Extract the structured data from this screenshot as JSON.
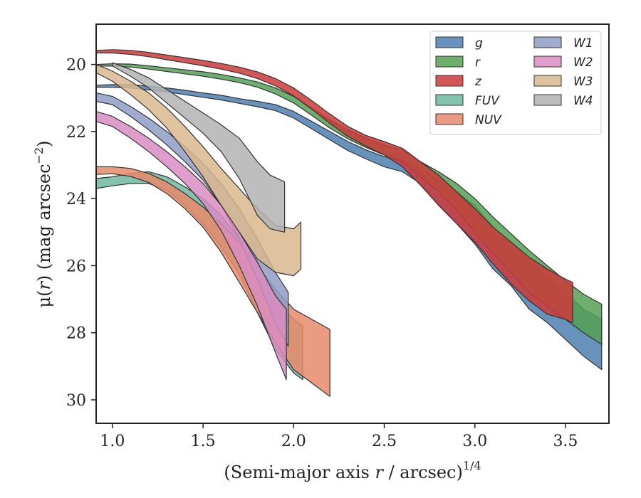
{
  "chart_data": {
    "type": "area",
    "xlabel_main": "(Semi-major axis ",
    "xlabel_var": "r",
    "xlabel_post": " / arcsec)",
    "xlabel_sup": "1/4",
    "ylabel_main": "μ(",
    "ylabel_var": "r",
    "ylabel_post": ") (mag arcsec",
    "ylabel_sup": "−2",
    "ylabel_close": ")",
    "xlim": [
      0.91,
      3.74
    ],
    "ylim": [
      30.7,
      18.8
    ],
    "y_inverted": true,
    "xticks": [
      1.0,
      1.5,
      2.0,
      2.5,
      3.0,
      3.5
    ],
    "xtick_labels": [
      "1.0",
      "1.5",
      "2.0",
      "2.5",
      "3.0",
      "3.5"
    ],
    "yticks": [
      20,
      22,
      24,
      26,
      28,
      30
    ],
    "ytick_labels": [
      "20",
      "22",
      "24",
      "26",
      "28",
      "30"
    ],
    "legend_position": "top-right",
    "legend_columns": 2,
    "series": [
      {
        "name": "g",
        "color": "#4c7fb0",
        "band": [
          [
            0.91,
            20.62,
            20.68
          ],
          [
            1.0,
            20.6,
            20.68
          ],
          [
            1.1,
            20.6,
            20.7
          ],
          [
            1.2,
            20.65,
            20.76
          ],
          [
            1.3,
            20.7,
            20.82
          ],
          [
            1.4,
            20.77,
            20.9
          ],
          [
            1.5,
            20.85,
            20.98
          ],
          [
            1.6,
            20.92,
            21.06
          ],
          [
            1.7,
            21.02,
            21.16
          ],
          [
            1.8,
            21.1,
            21.26
          ],
          [
            1.9,
            21.2,
            21.38
          ],
          [
            2.0,
            21.4,
            21.6
          ],
          [
            2.1,
            21.7,
            21.92
          ],
          [
            2.2,
            22.0,
            22.25
          ],
          [
            2.3,
            22.3,
            22.57
          ],
          [
            2.4,
            22.55,
            22.82
          ],
          [
            2.5,
            22.75,
            23.05
          ],
          [
            2.6,
            22.85,
            23.2
          ],
          [
            2.7,
            23.1,
            23.55
          ],
          [
            2.8,
            23.45,
            24.2
          ],
          [
            2.9,
            23.8,
            24.75
          ],
          [
            3.0,
            24.2,
            25.35
          ],
          [
            3.1,
            24.85,
            26.1
          ],
          [
            3.2,
            25.3,
            26.6
          ],
          [
            3.3,
            25.9,
            27.3
          ],
          [
            3.4,
            26.35,
            27.7
          ],
          [
            3.5,
            26.8,
            28.2
          ],
          [
            3.6,
            27.3,
            28.7
          ],
          [
            3.7,
            27.6,
            29.1
          ]
        ]
      },
      {
        "name": "r",
        "color": "#55a055",
        "band": [
          [
            0.91,
            20.0,
            20.05
          ],
          [
            1.0,
            19.98,
            20.05
          ],
          [
            1.1,
            19.99,
            20.08
          ],
          [
            1.2,
            20.04,
            20.14
          ],
          [
            1.3,
            20.1,
            20.21
          ],
          [
            1.4,
            20.16,
            20.28
          ],
          [
            1.5,
            20.22,
            20.35
          ],
          [
            1.6,
            20.3,
            20.44
          ],
          [
            1.7,
            20.4,
            20.54
          ],
          [
            1.8,
            20.52,
            20.68
          ],
          [
            1.9,
            20.7,
            20.88
          ],
          [
            2.0,
            20.95,
            21.15
          ],
          [
            2.1,
            21.3,
            21.52
          ],
          [
            2.2,
            21.65,
            21.9
          ],
          [
            2.3,
            21.95,
            22.22
          ],
          [
            2.4,
            22.2,
            22.48
          ],
          [
            2.5,
            22.4,
            22.7
          ],
          [
            2.6,
            22.55,
            22.9
          ],
          [
            2.7,
            22.9,
            23.35
          ],
          [
            2.8,
            23.2,
            23.8
          ],
          [
            2.9,
            23.55,
            24.35
          ],
          [
            3.0,
            24.0,
            25.0
          ],
          [
            3.1,
            24.55,
            25.65
          ],
          [
            3.2,
            25.05,
            26.2
          ],
          [
            3.3,
            25.55,
            26.8
          ],
          [
            3.4,
            26.0,
            27.2
          ],
          [
            3.5,
            26.45,
            27.6
          ],
          [
            3.6,
            26.85,
            28.0
          ],
          [
            3.7,
            27.15,
            28.35
          ]
        ]
      },
      {
        "name": "z",
        "color": "#cc3a3a",
        "band": [
          [
            0.91,
            19.58,
            19.66
          ],
          [
            1.0,
            19.56,
            19.66
          ],
          [
            1.1,
            19.58,
            19.7
          ],
          [
            1.2,
            19.64,
            19.77
          ],
          [
            1.3,
            19.72,
            19.86
          ],
          [
            1.4,
            19.8,
            19.95
          ],
          [
            1.5,
            19.88,
            20.04
          ],
          [
            1.6,
            19.97,
            20.14
          ],
          [
            1.7,
            20.08,
            20.26
          ],
          [
            1.8,
            20.22,
            20.42
          ],
          [
            1.9,
            20.42,
            20.64
          ],
          [
            2.0,
            20.7,
            20.94
          ],
          [
            2.1,
            21.08,
            21.34
          ],
          [
            2.2,
            21.48,
            21.76
          ],
          [
            2.3,
            21.85,
            22.15
          ],
          [
            2.4,
            22.12,
            22.44
          ],
          [
            2.5,
            22.3,
            22.7
          ],
          [
            2.6,
            22.5,
            23.05
          ],
          [
            2.7,
            22.9,
            23.6
          ],
          [
            2.8,
            23.3,
            24.2
          ],
          [
            2.9,
            23.8,
            24.75
          ],
          [
            3.0,
            24.3,
            25.3
          ],
          [
            3.1,
            24.85,
            25.95
          ],
          [
            3.2,
            25.3,
            26.55
          ],
          [
            3.3,
            25.75,
            27.05
          ],
          [
            3.4,
            26.1,
            27.45
          ],
          [
            3.5,
            26.4,
            27.6
          ],
          [
            3.54,
            26.5,
            27.7
          ]
        ]
      },
      {
        "name": "FUV",
        "color": "#6fb99f",
        "band": [
          [
            0.91,
            23.4,
            23.7
          ],
          [
            1.0,
            23.35,
            23.62
          ],
          [
            1.1,
            23.25,
            23.55
          ],
          [
            1.2,
            23.2,
            23.55
          ],
          [
            1.3,
            23.35,
            23.75
          ],
          [
            1.4,
            23.65,
            24.2
          ],
          [
            1.5,
            24.0,
            24.75
          ],
          [
            1.6,
            24.5,
            25.45
          ],
          [
            1.7,
            25.2,
            26.25
          ],
          [
            1.8,
            26.1,
            27.4
          ],
          [
            1.9,
            27.0,
            28.5
          ],
          [
            2.0,
            27.6,
            29.2
          ],
          [
            2.05,
            27.8,
            29.4
          ]
        ]
      },
      {
        "name": "NUV",
        "color": "#e8896a",
        "band": [
          [
            0.91,
            23.05,
            23.28
          ],
          [
            1.0,
            23.05,
            23.26
          ],
          [
            1.1,
            23.1,
            23.34
          ],
          [
            1.2,
            23.25,
            23.52
          ],
          [
            1.3,
            23.5,
            23.85
          ],
          [
            1.4,
            23.85,
            24.3
          ],
          [
            1.5,
            24.25,
            24.85
          ],
          [
            1.6,
            24.75,
            25.6
          ],
          [
            1.7,
            25.3,
            26.5
          ],
          [
            1.8,
            26.0,
            27.4
          ],
          [
            1.9,
            26.7,
            28.3
          ],
          [
            2.0,
            27.3,
            29.1
          ],
          [
            2.1,
            27.6,
            29.5
          ],
          [
            2.2,
            27.9,
            29.9
          ]
        ]
      },
      {
        "name": "W1",
        "color": "#8f9ec7",
        "band": [
          [
            0.91,
            20.85,
            21.1
          ],
          [
            1.0,
            20.95,
            21.2
          ],
          [
            1.1,
            21.25,
            21.55
          ],
          [
            1.2,
            21.6,
            21.95
          ],
          [
            1.3,
            22.0,
            22.4
          ],
          [
            1.4,
            22.45,
            22.9
          ],
          [
            1.5,
            22.95,
            23.45
          ],
          [
            1.6,
            23.55,
            24.2
          ],
          [
            1.7,
            24.3,
            25.2
          ],
          [
            1.8,
            25.2,
            26.4
          ],
          [
            1.9,
            26.2,
            27.7
          ],
          [
            1.97,
            26.8,
            28.4
          ]
        ]
      },
      {
        "name": "W2",
        "color": "#d98cc2",
        "band": [
          [
            0.91,
            21.4,
            21.7
          ],
          [
            1.0,
            21.55,
            21.85
          ],
          [
            1.1,
            21.85,
            22.2
          ],
          [
            1.2,
            22.2,
            22.6
          ],
          [
            1.3,
            22.6,
            23.05
          ],
          [
            1.4,
            23.05,
            23.55
          ],
          [
            1.5,
            23.55,
            24.15
          ],
          [
            1.6,
            24.2,
            24.95
          ],
          [
            1.7,
            25.0,
            26.0
          ],
          [
            1.8,
            25.9,
            27.2
          ],
          [
            1.9,
            26.9,
            28.6
          ],
          [
            1.96,
            27.3,
            29.4
          ]
        ]
      },
      {
        "name": "W3",
        "color": "#d9b98d",
        "band": [
          [
            0.91,
            20.0,
            20.25
          ],
          [
            1.0,
            20.2,
            20.5
          ],
          [
            1.1,
            20.5,
            20.9
          ],
          [
            1.2,
            20.85,
            21.35
          ],
          [
            1.3,
            21.3,
            21.9
          ],
          [
            1.4,
            21.85,
            22.6
          ],
          [
            1.5,
            22.45,
            23.35
          ],
          [
            1.6,
            23.1,
            24.2
          ],
          [
            1.7,
            23.7,
            25.0
          ],
          [
            1.8,
            24.3,
            25.8
          ],
          [
            1.9,
            24.8,
            26.2
          ],
          [
            2.0,
            24.9,
            26.3
          ],
          [
            2.04,
            24.7,
            26.1
          ]
        ]
      },
      {
        "name": "W4",
        "color": "#b3b3b3",
        "band": [
          [
            1.0,
            19.95,
            20.05
          ],
          [
            1.1,
            20.15,
            20.35
          ],
          [
            1.2,
            20.4,
            20.7
          ],
          [
            1.3,
            20.75,
            21.15
          ],
          [
            1.4,
            21.1,
            21.6
          ],
          [
            1.5,
            21.45,
            22.05
          ],
          [
            1.6,
            21.8,
            22.6
          ],
          [
            1.7,
            22.2,
            23.4
          ],
          [
            1.8,
            22.9,
            24.5
          ],
          [
            1.87,
            23.3,
            24.9
          ],
          [
            1.95,
            23.5,
            25.0
          ]
        ]
      }
    ]
  }
}
